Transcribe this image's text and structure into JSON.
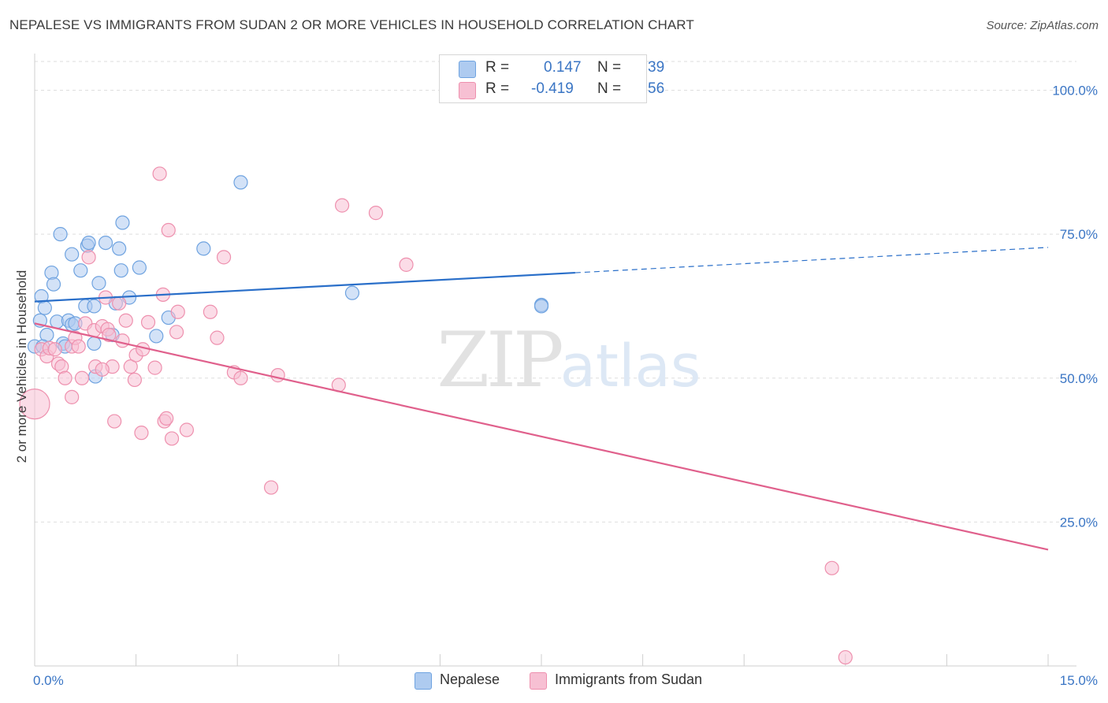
{
  "title": "NEPALESE VS IMMIGRANTS FROM SUDAN 2 OR MORE VEHICLES IN HOUSEHOLD CORRELATION CHART",
  "source": "Source: ZipAtlas.com",
  "watermark": {
    "zip": "ZIP",
    "atlas": "atlas"
  },
  "legend_stats": [
    {
      "r_label": "R =",
      "r_value": "0.147",
      "n_label": "N =",
      "n_value": "39"
    },
    {
      "r_label": "R =",
      "r_value": "-0.419",
      "n_label": "N =",
      "n_value": "56"
    }
  ],
  "chart_data": {
    "type": "scatter",
    "title": "NEPALESE VS IMMIGRANTS FROM SUDAN 2 OR MORE VEHICLES IN HOUSEHOLD CORRELATION CHART",
    "xlabel": "",
    "ylabel": "2 or more Vehicles in Household",
    "xlim": [
      0,
      15
    ],
    "ylim": [
      0,
      105
    ],
    "x_tick_labels": [
      "0.0%",
      "15.0%"
    ],
    "y_ticks": [
      25,
      50,
      75,
      100
    ],
    "y_tick_labels": [
      "25.0%",
      "50.0%",
      "75.0%",
      "100.0%"
    ],
    "grid": true,
    "legend_position": "bottom",
    "series": [
      {
        "name": "Nepalese",
        "color": "#6fa3e0",
        "fill": "#aecbf0",
        "trend": {
          "x": [
            0,
            8.0
          ],
          "y": [
            63.3,
            68.3
          ],
          "extended_to": [
            15,
            72.7
          ],
          "color": "#2a6fc9"
        },
        "points": [
          [
            0.0,
            55.5
          ],
          [
            0.08,
            60.0
          ],
          [
            0.1,
            64.2
          ],
          [
            0.15,
            62.2
          ],
          [
            0.18,
            57.5
          ],
          [
            0.25,
            68.3
          ],
          [
            0.28,
            66.3
          ],
          [
            0.33,
            59.8
          ],
          [
            0.38,
            75.0
          ],
          [
            0.42,
            56.0
          ],
          [
            0.45,
            55.5
          ],
          [
            0.5,
            60.0
          ],
          [
            0.55,
            59.3
          ],
          [
            0.55,
            71.5
          ],
          [
            0.6,
            59.5
          ],
          [
            0.68,
            68.7
          ],
          [
            0.75,
            62.5
          ],
          [
            0.78,
            73.0
          ],
          [
            0.8,
            73.5
          ],
          [
            0.88,
            56.0
          ],
          [
            0.9,
            50.3
          ],
          [
            0.95,
            66.5
          ],
          [
            1.05,
            73.5
          ],
          [
            1.15,
            57.5
          ],
          [
            1.25,
            72.5
          ],
          [
            1.28,
            68.7
          ],
          [
            1.3,
            77.0
          ],
          [
            1.4,
            64.0
          ],
          [
            1.55,
            69.2
          ],
          [
            1.8,
            57.3
          ],
          [
            1.98,
            60.5
          ],
          [
            2.5,
            72.5
          ],
          [
            3.05,
            84.0
          ],
          [
            4.7,
            64.8
          ],
          [
            7.5,
            62.7
          ],
          [
            0.88,
            62.5
          ],
          [
            1.2,
            63.0
          ],
          [
            0.12,
            55.5
          ],
          [
            7.5,
            62.5
          ]
        ]
      },
      {
        "name": "Immigrants from Sudan",
        "color": "#ee90ae",
        "fill": "#f7c0d3",
        "trend": {
          "x": [
            0,
            15
          ],
          "y": [
            59.5,
            20.2
          ],
          "color": "#e0608c"
        },
        "points": [
          [
            0.0,
            45.5
          ],
          [
            0.1,
            55.0
          ],
          [
            0.18,
            53.8
          ],
          [
            0.22,
            55.2
          ],
          [
            0.3,
            55.0
          ],
          [
            0.35,
            52.5
          ],
          [
            0.4,
            52.0
          ],
          [
            0.45,
            50.0
          ],
          [
            0.55,
            55.5
          ],
          [
            0.55,
            46.7
          ],
          [
            0.6,
            57.0
          ],
          [
            0.7,
            50.0
          ],
          [
            0.75,
            59.5
          ],
          [
            0.8,
            71.0
          ],
          [
            0.88,
            58.3
          ],
          [
            0.9,
            52.0
          ],
          [
            1.0,
            59.0
          ],
          [
            1.05,
            64.0
          ],
          [
            1.08,
            58.5
          ],
          [
            1.1,
            57.5
          ],
          [
            1.15,
            52.0
          ],
          [
            1.18,
            42.5
          ],
          [
            1.25,
            63.0
          ],
          [
            1.3,
            56.5
          ],
          [
            1.35,
            60.0
          ],
          [
            1.42,
            52.0
          ],
          [
            1.48,
            49.7
          ],
          [
            1.5,
            54.0
          ],
          [
            1.58,
            40.5
          ],
          [
            1.6,
            55.0
          ],
          [
            1.68,
            59.7
          ],
          [
            1.78,
            51.8
          ],
          [
            1.85,
            85.5
          ],
          [
            1.9,
            64.5
          ],
          [
            1.92,
            42.5
          ],
          [
            1.95,
            43.0
          ],
          [
            1.98,
            75.7
          ],
          [
            2.03,
            39.5
          ],
          [
            2.1,
            58.0
          ],
          [
            2.12,
            61.5
          ],
          [
            2.25,
            41.0
          ],
          [
            2.6,
            61.5
          ],
          [
            2.7,
            57.0
          ],
          [
            2.8,
            71.0
          ],
          [
            2.95,
            51.0
          ],
          [
            3.05,
            50.0
          ],
          [
            3.5,
            31.0
          ],
          [
            3.6,
            50.5
          ],
          [
            4.5,
            48.8
          ],
          [
            4.55,
            80.0
          ],
          [
            5.05,
            78.7
          ],
          [
            5.5,
            69.7
          ],
          [
            11.8,
            17.0
          ],
          [
            12.0,
            1.5
          ],
          [
            0.65,
            55.5
          ],
          [
            1.0,
            51.5
          ]
        ]
      }
    ]
  }
}
